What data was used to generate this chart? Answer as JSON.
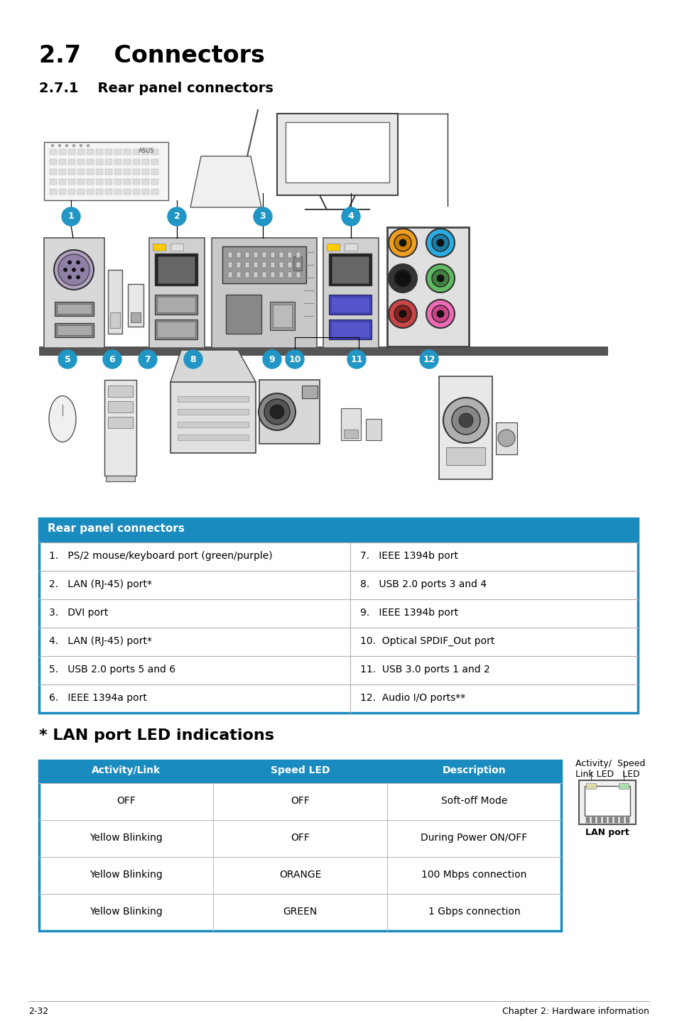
{
  "title": "2.7    Connectors",
  "subtitle": "2.7.1    Rear panel connectors",
  "bg_color": "#ffffff",
  "header_color": "#1a8bbf",
  "header_text_color": "#ffffff",
  "table_border_color": "#1a8bbf",
  "connector_table_header": "Rear panel connectors",
  "connector_rows": [
    [
      "1.   PS/2 mouse/keyboard port (green/purple)",
      "7.   IEEE 1394b port"
    ],
    [
      "2.   LAN (RJ-45) port*",
      "8.   USB 2.0 ports 3 and 4"
    ],
    [
      "3.   DVI port",
      "9.   IEEE 1394b port"
    ],
    [
      "4.   LAN (RJ-45) port*",
      "10.  Optical SPDIF_Out port"
    ],
    [
      "5.   USB 2.0 ports 5 and 6",
      "11.  USB 3.0 ports 1 and 2"
    ],
    [
      "6.   IEEE 1394a port",
      "12.  Audio I/O ports**"
    ]
  ],
  "lan_title": "* LAN port LED indications",
  "lan_table_headers": [
    "Activity/Link",
    "Speed LED",
    "Description"
  ],
  "lan_rows": [
    [
      "OFF",
      "OFF",
      "Soft-off Mode"
    ],
    [
      "Yellow Blinking",
      "OFF",
      "During Power ON/OFF"
    ],
    [
      "Yellow Blinking",
      "ORANGE",
      "100 Mbps connection"
    ],
    [
      "Yellow Blinking",
      "GREEN",
      "1 Gbps connection"
    ]
  ],
  "lan_diagram_label1": "Activity/  Speed",
  "lan_diagram_label2": "Link LED   LED",
  "lan_diagram_label3": "LAN port",
  "footer_left": "2-32",
  "footer_right": "Chapter 2: Hardware information",
  "bubble_color": "#2196c4",
  "bubble_text_color": "#ffffff"
}
